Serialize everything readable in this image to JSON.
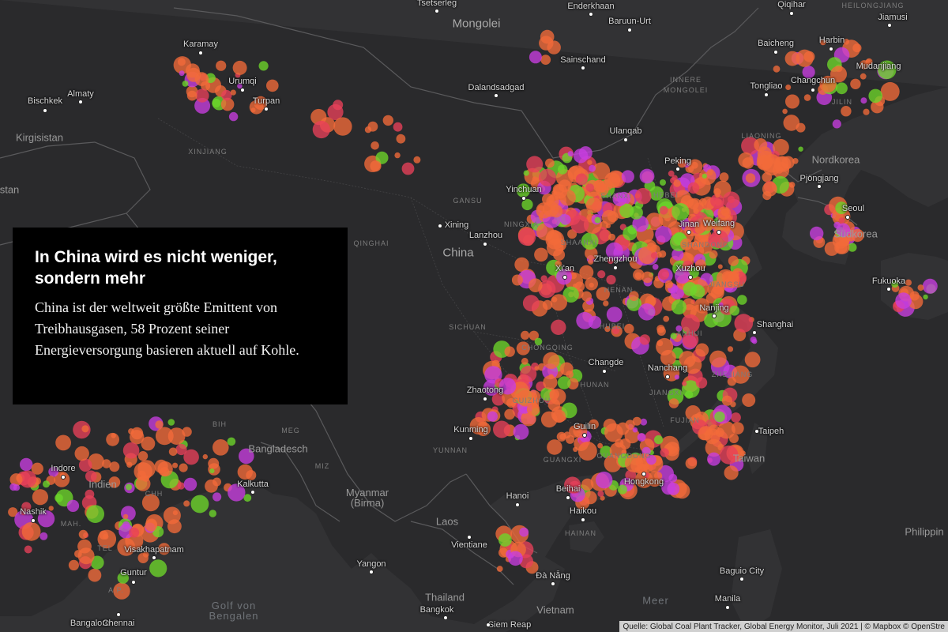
{
  "panel": {
    "title": "In China wird es nicht weniger, sondern mehr",
    "text": "China ist der weltweit größte Emittent von Treibhausgasen, 58 Prozent seiner Energieversorgung basieren aktuell auf Kohle."
  },
  "attribution": "Quelle: Global Coal Plant Tracker, Global Energy Monitor, Juli 2021 | © Mapbox © OpenStre",
  "colors": {
    "background": "#2a2a2c",
    "land": "#323234",
    "border": "#5a5a5c",
    "plant_orange": "#f26a3a",
    "plant_magenta": "#c83de0",
    "plant_green": "#6dd62a",
    "plant_red": "#e8405a"
  },
  "countries": [
    {
      "id": "mongolei",
      "label": "Mongolei",
      "big": true
    },
    {
      "id": "china",
      "label": "China",
      "big": true
    },
    {
      "id": "kirgisistan",
      "label": "Kirgisistan"
    },
    {
      "id": "stan",
      "label": "stan"
    },
    {
      "id": "indien",
      "label": "Indien"
    },
    {
      "id": "bangladesch",
      "label": "Bangladesch"
    },
    {
      "id": "myanmar",
      "label": "Myanmar\n(Birma)"
    },
    {
      "id": "laos",
      "label": "Laos"
    },
    {
      "id": "thailand",
      "label": "Thailand"
    },
    {
      "id": "vietnam",
      "label": "Vietnam"
    },
    {
      "id": "nordkorea",
      "label": "Nordkorea"
    },
    {
      "id": "suedkorea",
      "label": "Südkorea"
    },
    {
      "id": "taiwan",
      "label": "Taiwan"
    },
    {
      "id": "philippinen",
      "label": "Philippin"
    }
  ],
  "regions": [
    {
      "id": "innere-mongolei",
      "label": "INNERE\nMONGOLEI"
    },
    {
      "id": "xinjiang",
      "label": "XINJIANG"
    },
    {
      "id": "qinghai",
      "label": "QINGHAI"
    },
    {
      "id": "gansu",
      "label": "GANSU"
    },
    {
      "id": "ningxia",
      "label": "NINGXIA"
    },
    {
      "id": "shaanxi",
      "label": "SHAANXI"
    },
    {
      "id": "shanxi",
      "label": "SHANXI"
    },
    {
      "id": "hebei",
      "label": "HEBEI"
    },
    {
      "id": "shandong",
      "label": "SHANDONG"
    },
    {
      "id": "henan",
      "label": "HENAN"
    },
    {
      "id": "jiangsu",
      "label": "JIANGSU"
    },
    {
      "id": "anhui",
      "label": "ANHUI"
    },
    {
      "id": "hubei",
      "label": "HUBEI"
    },
    {
      "id": "sichuan",
      "label": "SICHUAN"
    },
    {
      "id": "chongqing",
      "label": "CHONGQING"
    },
    {
      "id": "guizhou",
      "label": "GUIZHOU"
    },
    {
      "id": "hunan",
      "label": "HUNAN"
    },
    {
      "id": "jiangxi",
      "label": "JIANGXI"
    },
    {
      "id": "zhejiang",
      "label": "ZHEJIANG"
    },
    {
      "id": "fujian",
      "label": "FUJIAN"
    },
    {
      "id": "yunnan",
      "label": "YUNNAN"
    },
    {
      "id": "guangxi",
      "label": "GUANGXI"
    },
    {
      "id": "guangdong",
      "label": "GUANGDONG"
    },
    {
      "id": "hainan",
      "label": "HAINAN"
    },
    {
      "id": "liaoning",
      "label": "LIAONING"
    },
    {
      "id": "jilin",
      "label": "JILIN"
    },
    {
      "id": "heilongjiang",
      "label": "HEILONGJIANG"
    },
    {
      "id": "meg",
      "label": "MEG"
    },
    {
      "id": "miz",
      "label": "MIZ"
    },
    {
      "id": "bih",
      "label": "BIH"
    },
    {
      "id": "mah",
      "label": "MAH."
    },
    {
      "id": "tel",
      "label": "TEL"
    },
    {
      "id": "ap",
      "label": "A.P."
    },
    {
      "id": "chh",
      "label": "CHH"
    }
  ],
  "water": [
    {
      "id": "golf-von-bengalen",
      "label": "Golf von\nBengalen"
    },
    {
      "id": "meer",
      "label": "Meer"
    }
  ],
  "cities": [
    {
      "id": "tsetserleg",
      "label": "Tsetserleg"
    },
    {
      "id": "enderkhaan",
      "label": "Enderkhaan"
    },
    {
      "id": "baruun-urt",
      "label": "Baruun-Urt"
    },
    {
      "id": "qiqihar",
      "label": "Qiqihar"
    },
    {
      "id": "jiamusi",
      "label": "Jiamusi"
    },
    {
      "id": "karamay",
      "label": "Karamay"
    },
    {
      "id": "sainschand",
      "label": "Sainschand"
    },
    {
      "id": "harbin",
      "label": "Harbin"
    },
    {
      "id": "baicheng",
      "label": "Baicheng"
    },
    {
      "id": "mudanjiang",
      "label": "Mudanjiang"
    },
    {
      "id": "urumqi",
      "label": "Urumqi"
    },
    {
      "id": "almaty",
      "label": "Almaty"
    },
    {
      "id": "dalandsadgad",
      "label": "Dalandsadgad"
    },
    {
      "id": "tongliao",
      "label": "Tongliao"
    },
    {
      "id": "changchun",
      "label": "Changchun"
    },
    {
      "id": "bischkek",
      "label": "Bischkek"
    },
    {
      "id": "turpan",
      "label": "Turpan"
    },
    {
      "id": "ulanqab",
      "label": "Ulanqab"
    },
    {
      "id": "peking",
      "label": "Peking"
    },
    {
      "id": "pjoengjang",
      "label": "Pjöngjang"
    },
    {
      "id": "yinchuan",
      "label": "Yinchuan"
    },
    {
      "id": "seoul",
      "label": "Seoul"
    },
    {
      "id": "xining",
      "label": "Xining"
    },
    {
      "id": "lanzhou",
      "label": "Lanzhou"
    },
    {
      "id": "jinan",
      "label": "Jinan"
    },
    {
      "id": "weifang",
      "label": "Weifang"
    },
    {
      "id": "zhengzhou",
      "label": "Zhengzhou"
    },
    {
      "id": "xian",
      "label": "Xi'an"
    },
    {
      "id": "xuzhou",
      "label": "Xuzhou"
    },
    {
      "id": "fukuoka",
      "label": "Fukuoka"
    },
    {
      "id": "nanjing",
      "label": "Nanjing"
    },
    {
      "id": "shanghai",
      "label": "Shanghai"
    },
    {
      "id": "changde",
      "label": "Changde"
    },
    {
      "id": "nanchang",
      "label": "Nanchang"
    },
    {
      "id": "zhaotong",
      "label": "Zhaotong"
    },
    {
      "id": "kunming",
      "label": "Kunming"
    },
    {
      "id": "guilin",
      "label": "Guilin"
    },
    {
      "id": "taipeh",
      "label": "Taipeh"
    },
    {
      "id": "indore",
      "label": "Indore"
    },
    {
      "id": "kalkutta",
      "label": "Kalkutta"
    },
    {
      "id": "hongkong",
      "label": "Hongkong"
    },
    {
      "id": "beihai",
      "label": "Beihai"
    },
    {
      "id": "hanoi",
      "label": "Hanoi"
    },
    {
      "id": "nashik",
      "label": "Nashik"
    },
    {
      "id": "haikou",
      "label": "Haikou"
    },
    {
      "id": "vientiane",
      "label": "Vientiane"
    },
    {
      "id": "visakhapatnam",
      "label": "Visakhapatnam"
    },
    {
      "id": "guntur",
      "label": "Guntur"
    },
    {
      "id": "yangon",
      "label": "Yangon"
    },
    {
      "id": "baguio-city",
      "label": "Baguio City"
    },
    {
      "id": "da-nang",
      "label": "Đà Nẵng"
    },
    {
      "id": "manila",
      "label": "Manila"
    },
    {
      "id": "bangkok",
      "label": "Bangkok"
    },
    {
      "id": "bangalore",
      "label": "Bangalore"
    },
    {
      "id": "chennai",
      "label": "Chennai"
    },
    {
      "id": "siem-reap",
      "label": "Siem Reap"
    }
  ]
}
